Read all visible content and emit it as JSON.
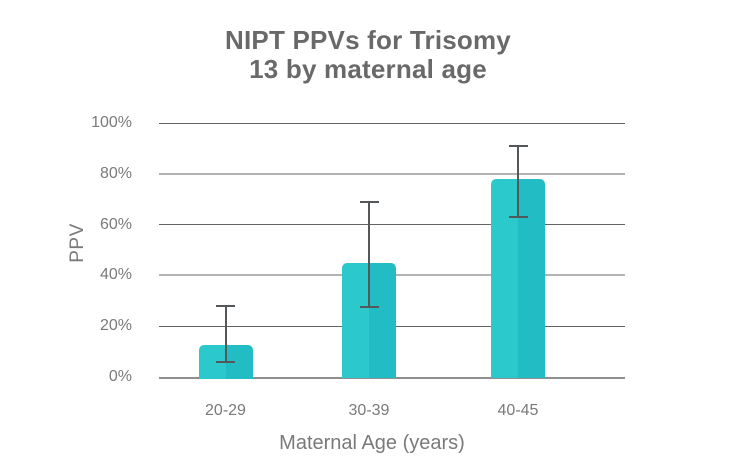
{
  "chart_data": {
    "type": "bar",
    "title": "NIPT PPVs for Trisomy 13 by maternal age",
    "title_lines": [
      "NIPT PPVs for Trisomy",
      "13 by maternal age"
    ],
    "xlabel": "Maternal Age (years)",
    "ylabel": "PPV",
    "categories": [
      "20-29",
      "30-39",
      "40-45"
    ],
    "values": [
      12.5,
      44.7,
      78
    ],
    "error_low": [
      6,
      27.5,
      63
    ],
    "error_high": [
      28,
      69,
      91
    ],
    "yticks": [
      100,
      80,
      60,
      40,
      20,
      0
    ],
    "ytick_labels": [
      "100%",
      "80%",
      "60%",
      "40%",
      "20%",
      "0%"
    ],
    "ylim": [
      0,
      100
    ],
    "grid": true,
    "legend": "none",
    "colors": {
      "bar_light": "#2BC9CB",
      "bar_dark": "#22BDC4",
      "error_bar": "#55585A",
      "grid_dark": "#636363",
      "grid_light": "#B3B3B3",
      "axis_line": "#8F8F8F",
      "tick_text": "#7A7A7A",
      "title_text": "#696969"
    }
  }
}
